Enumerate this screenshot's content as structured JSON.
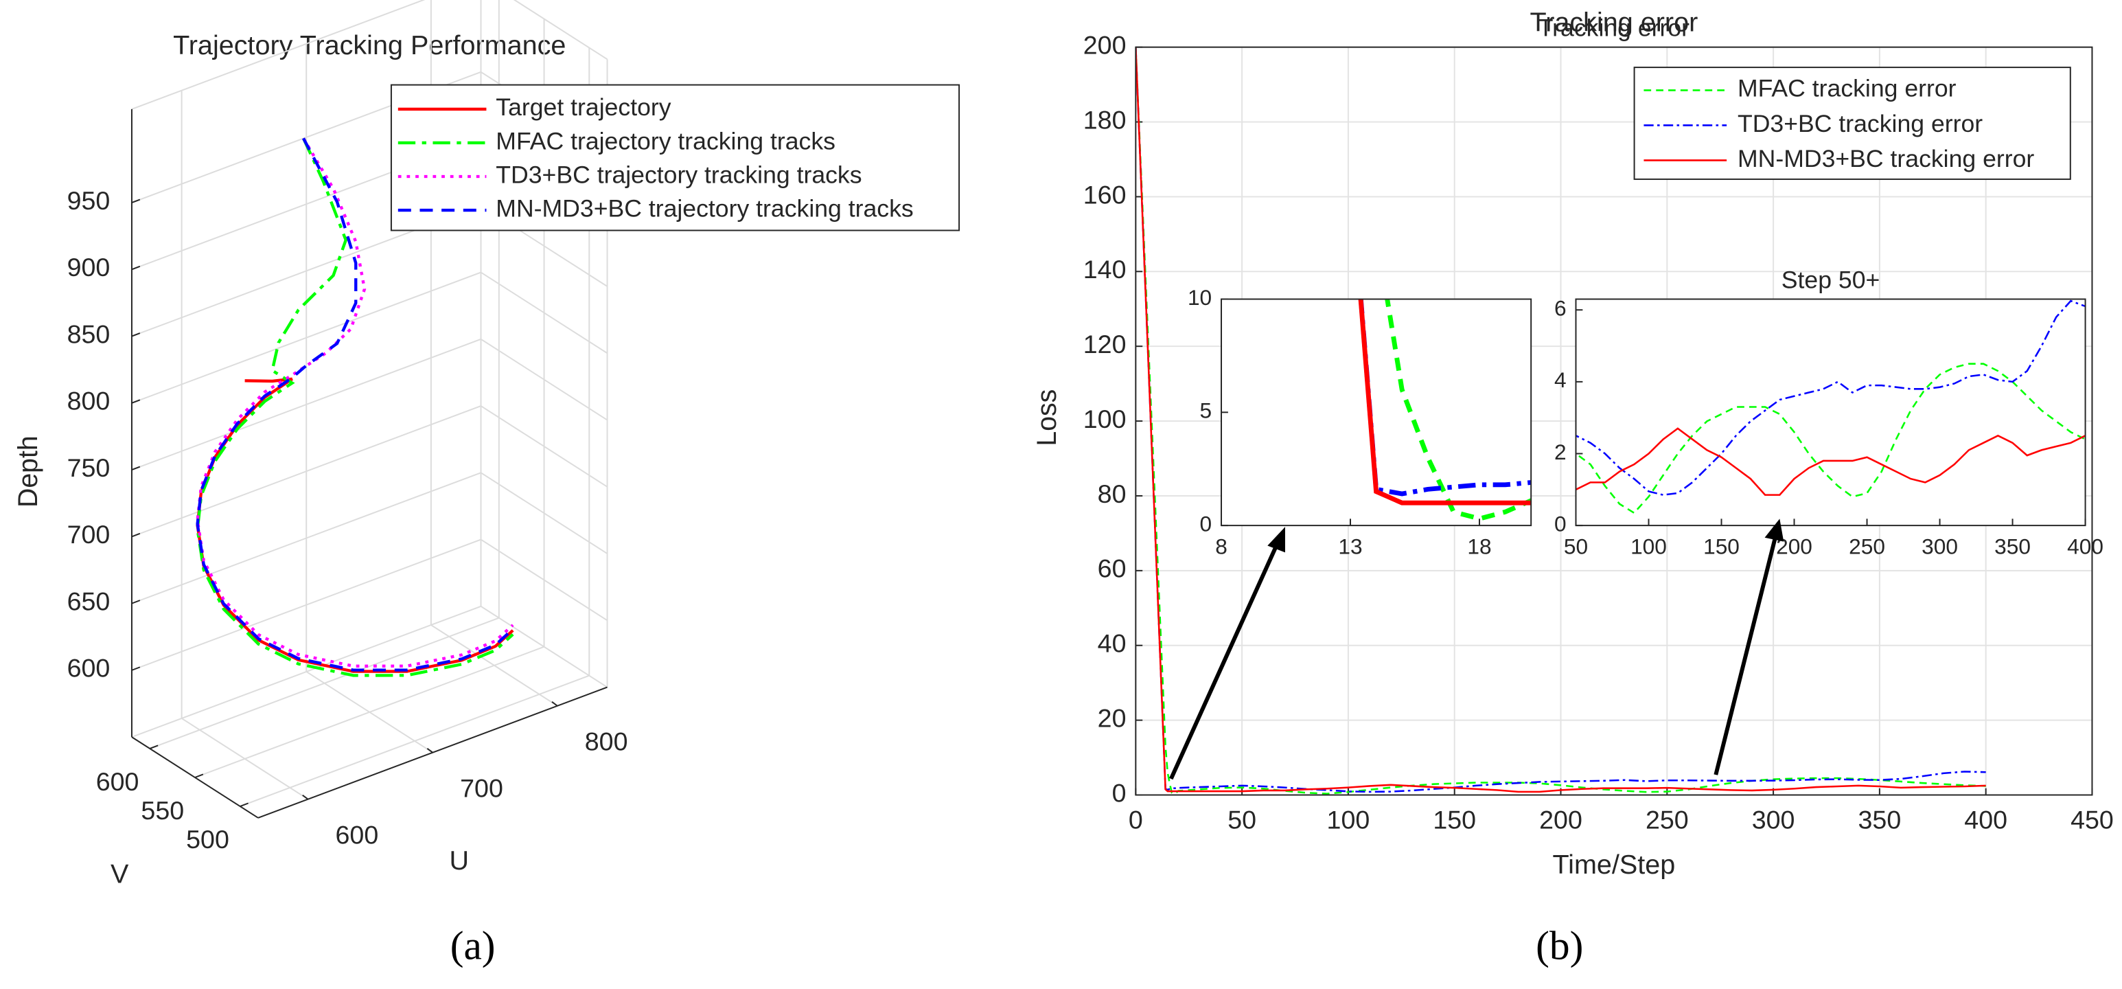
{
  "chart_data": [
    {
      "type": "line3d",
      "title": "Trajectory Tracking Performance",
      "caption": "(a)",
      "xlabel": "U",
      "ylabel": "V",
      "zlabel": "Depth",
      "xlim": [
        560,
        840
      ],
      "ylim": [
        480,
        620
      ],
      "zlim": [
        550,
        1020
      ],
      "xticks": [
        600,
        700,
        800
      ],
      "yticks": [
        500,
        550,
        600
      ],
      "zticks": [
        600,
        650,
        700,
        750,
        800,
        850,
        900,
        950
      ],
      "grid": true,
      "legend": "upper right",
      "series": [
        {
          "name": "Target trajectory",
          "color": "#ff0000",
          "linestyle": "-",
          "x": [
            600,
            622,
            638,
            616,
            594,
            576,
            565,
            562,
            567,
            583,
            611,
            643,
            687,
            730,
            774,
            801,
            815
          ],
          "y": [
            550,
            550,
            550,
            550,
            550,
            550,
            550,
            550,
            550,
            550,
            550,
            550,
            550,
            550,
            550,
            550,
            550
          ],
          "z": [
            833,
            825,
            821,
            815,
            802,
            784,
            762,
            738,
            706,
            671,
            635,
            609,
            585,
            570,
            563,
            564,
            571
          ]
        },
        {
          "name": "MFAC trajectory tracking tracks",
          "color": "#00ff00",
          "linestyle": "-.",
          "x": [
            647,
            663,
            681,
            671,
            643,
            627,
            622,
            638,
            616,
            594,
            576,
            565,
            562,
            567,
            583,
            611,
            643,
            687,
            730,
            774,
            801,
            815
          ],
          "y": [
            550,
            550,
            550,
            550,
            550,
            550,
            550,
            550,
            550,
            550,
            550,
            550,
            550,
            550,
            550,
            550,
            550,
            550,
            550,
            550,
            550,
            550
          ],
          "z": [
            998,
            960,
            910,
            887,
            871,
            852,
            833,
            818,
            812,
            799,
            781,
            759,
            735,
            703,
            668,
            632,
            606,
            582,
            567,
            560,
            561,
            568
          ]
        },
        {
          "name": "TD3+BC trajectory tracking tracks",
          "color": "#ff00ff",
          "linestyle": ":",
          "x": [
            647,
            671,
            689,
            696,
            685,
            665,
            638,
            616,
            594,
            576,
            565,
            562,
            567,
            583,
            611,
            643,
            687,
            730,
            774,
            801,
            815
          ],
          "y": [
            550,
            550,
            550,
            550,
            550,
            550,
            550,
            550,
            550,
            550,
            550,
            550,
            550,
            550,
            550,
            550,
            550,
            550,
            550,
            550,
            550
          ],
          "z": [
            998,
            952,
            906,
            868,
            842,
            831,
            824,
            819,
            806,
            788,
            766,
            742,
            710,
            675,
            639,
            613,
            589,
            574,
            567,
            568,
            575
          ]
        },
        {
          "name": "MN-MD3+BC trajectory tracking tracks",
          "color": "#0000ff",
          "linestyle": "--",
          "x": [
            647,
            674,
            689,
            689,
            674,
            649,
            638,
            616,
            594,
            576,
            565,
            562,
            567,
            583,
            611,
            643,
            687,
            730,
            774,
            801,
            815
          ],
          "y": [
            550,
            550,
            550,
            550,
            550,
            550,
            550,
            550,
            550,
            550,
            550,
            550,
            550,
            550,
            550,
            550,
            550,
            550,
            550,
            550,
            550
          ],
          "z": [
            998,
            941,
            890,
            860,
            835,
            827,
            822,
            816,
            803,
            785,
            763,
            739,
            707,
            672,
            636,
            610,
            586,
            571,
            564,
            565,
            572
          ]
        }
      ]
    },
    {
      "type": "line",
      "title": "Tracking error",
      "caption": "(b)",
      "xlabel": "Time/Step",
      "ylabel": "Loss",
      "x": [
        0,
        14,
        15,
        16,
        17,
        18,
        19,
        20,
        30,
        40,
        50,
        60,
        70,
        80,
        90,
        100,
        110,
        120,
        130,
        140,
        150,
        160,
        170,
        180,
        190,
        200,
        210,
        220,
        230,
        240,
        250,
        260,
        270,
        280,
        290,
        300,
        310,
        320,
        330,
        340,
        350,
        360,
        370,
        380,
        390,
        400
      ],
      "xlim": [
        0,
        450
      ],
      "ylim": [
        0,
        200
      ],
      "xticks": [
        0,
        50,
        100,
        150,
        200,
        250,
        300,
        350,
        400,
        450
      ],
      "yticks": [
        0,
        20,
        40,
        60,
        80,
        100,
        120,
        140,
        160,
        180,
        200
      ],
      "grid": true,
      "legend": "upper right",
      "series": [
        {
          "name": "MFAC tracking error",
          "color": "#00ff00",
          "linestyle": "--",
          "values": [
            200,
            13,
            6,
            3,
            0.6,
            0.3,
            0.6,
            1.1,
            1.5,
            1.9,
            2.0,
            1.7,
            1.1,
            0.6,
            0.35,
            0.8,
            1.4,
            2.0,
            2.5,
            2.9,
            3.1,
            3.3,
            3.3,
            3.3,
            3.1,
            2.6,
            2.0,
            1.5,
            1.1,
            0.8,
            0.9,
            1.5,
            2.4,
            3.2,
            3.8,
            4.2,
            4.4,
            4.5,
            4.5,
            4.3,
            4.0,
            3.6,
            3.2,
            2.9,
            2.6,
            2.4
          ]
        },
        {
          "name": "TD3+BC tracking error",
          "color": "#0000ff",
          "linestyle": "-.",
          "values": [
            200,
            1.6,
            1.4,
            1.6,
            1.7,
            1.8,
            1.8,
            1.9,
            2.1,
            2.3,
            2.5,
            2.3,
            2.0,
            1.6,
            1.3,
            0.95,
            0.85,
            0.9,
            1.2,
            1.6,
            2.0,
            2.5,
            2.9,
            3.2,
            3.5,
            3.6,
            3.7,
            3.8,
            4.0,
            3.7,
            3.9,
            3.9,
            3.85,
            3.8,
            3.8,
            3.85,
            3.95,
            4.15,
            4.2,
            4.05,
            4.0,
            4.3,
            5.0,
            5.8,
            6.25,
            6.1
          ]
        },
        {
          "name": "MN-MD3+BC tracking error",
          "color": "#ff0000",
          "linestyle": "-",
          "values": [
            200,
            1.5,
            1.0,
            1.0,
            1.0,
            1.0,
            1.0,
            1.0,
            1.0,
            1.0,
            1.0,
            1.2,
            1.2,
            1.5,
            1.7,
            2.0,
            2.4,
            2.7,
            2.4,
            2.1,
            1.9,
            1.6,
            1.3,
            0.85,
            0.85,
            1.3,
            1.6,
            1.8,
            1.8,
            1.8,
            1.9,
            1.7,
            1.5,
            1.3,
            1.2,
            1.4,
            1.7,
            2.1,
            2.3,
            2.5,
            2.3,
            1.95,
            2.1,
            2.2,
            2.3,
            2.5
          ]
        }
      ],
      "insets": [
        {
          "xlim": [
            8,
            20
          ],
          "ylim": [
            0,
            10
          ],
          "xticks": [
            8,
            13,
            18
          ],
          "yticks": [
            0,
            5,
            10
          ]
        },
        {
          "title": "Step 50+",
          "xlim": [
            50,
            400
          ],
          "ylim": [
            0,
            6.3
          ],
          "xticks": [
            50,
            100,
            150,
            200,
            250,
            300,
            350,
            400
          ],
          "yticks": [
            0,
            2,
            4,
            6
          ]
        }
      ]
    }
  ]
}
